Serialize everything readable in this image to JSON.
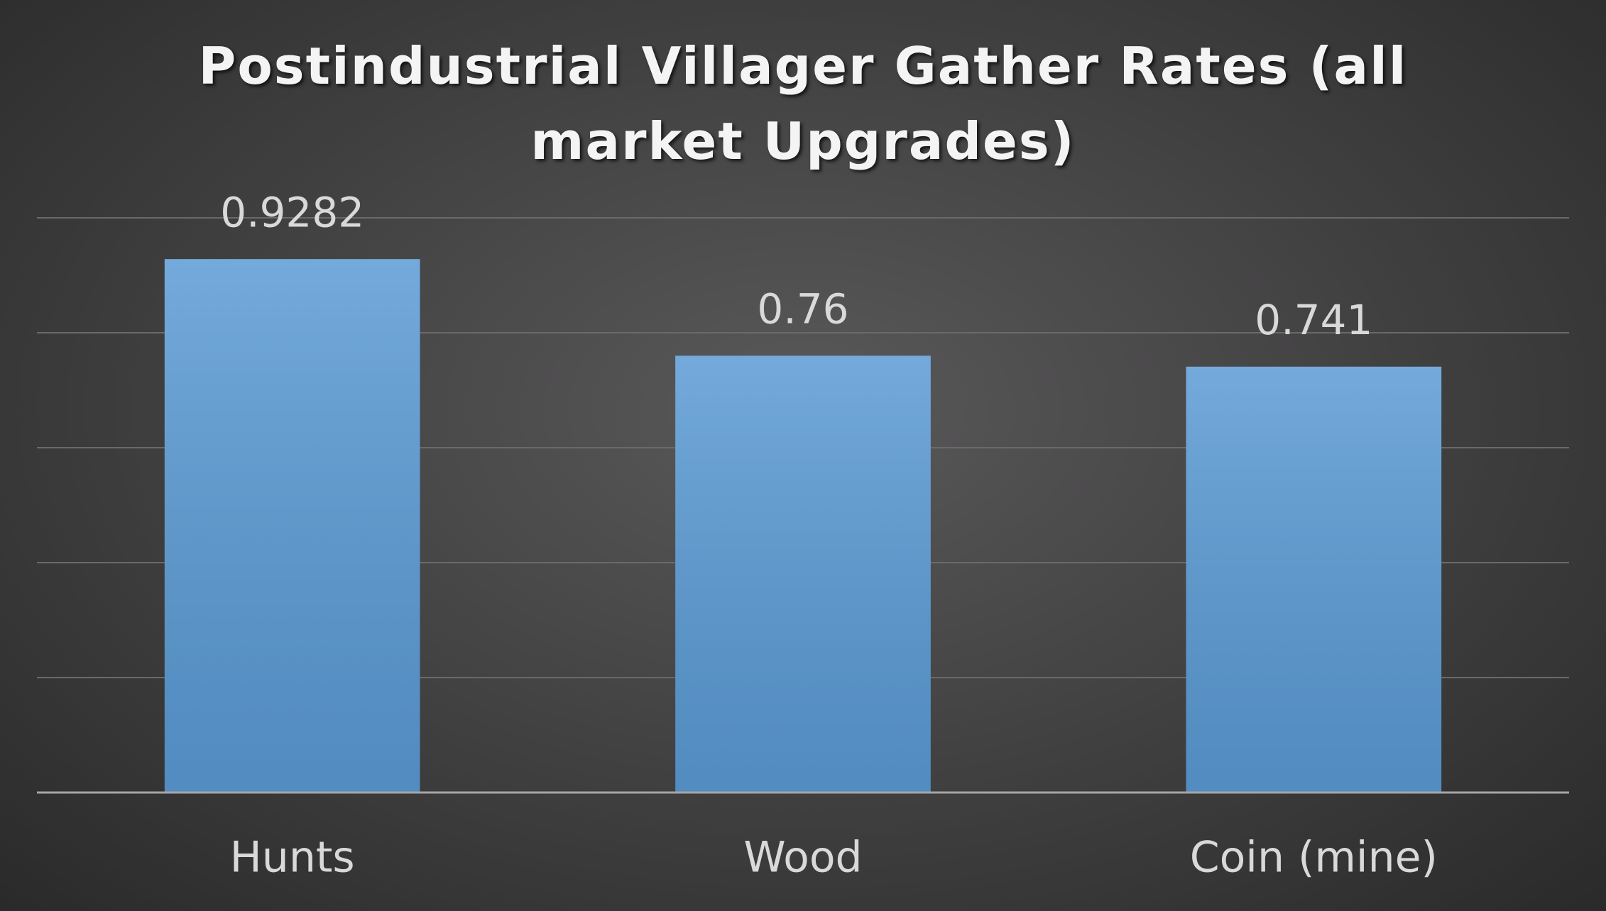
{
  "chart_data": {
    "type": "bar",
    "title": "Postindustrial Villager Gather Rates (all market Upgrades)",
    "categories": [
      "Hunts",
      "Wood",
      "Coin (mine)"
    ],
    "values": [
      0.9282,
      0.76,
      0.741
    ],
    "color": "#5b9bd5",
    "ylim": [
      0,
      1
    ],
    "yticks": [
      0,
      0.2,
      0.4,
      0.6,
      0.8,
      1
    ],
    "grid": true
  }
}
